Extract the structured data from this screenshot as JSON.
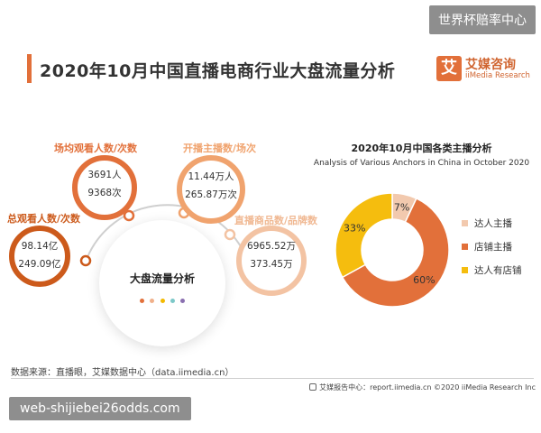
{
  "watermarks": {
    "top_right": "世界杯赔率中心",
    "bottom_left": "web-shijiebei26odds.com"
  },
  "header": {
    "title": "2020年10月中国直播电商行业大盘流量分析"
  },
  "logo": {
    "mark": "艾",
    "cn": "艾媒咨询",
    "en": "iiMedia Research"
  },
  "left_panel": {
    "center_label": "大盘流量分析",
    "center_dot_colors": [
      "#e2703a",
      "#f0b08a",
      "#f3b900",
      "#7cc8c8",
      "#8a6fb0"
    ],
    "metrics": [
      {
        "label": "总观看人数/次数",
        "values": [
          "98.14亿",
          "249.09亿"
        ],
        "color": "#cc5a1b"
      },
      {
        "label": "场均观看人数/次数",
        "values": [
          "3691人",
          "9368次"
        ],
        "color": "#e2703a"
      },
      {
        "label": "开播主播数/场次",
        "values": [
          "11.44万人",
          "265.87万次"
        ],
        "color": "#f0a36e"
      },
      {
        "label": "直播商品数/品牌数",
        "values": [
          "6965.52万",
          "373.45万"
        ],
        "color": "#f3c3a3"
      }
    ]
  },
  "chart_data": {
    "type": "pie",
    "title": "2020年10月中国各类主播分析",
    "subtitle": "Analysis of Various Anchors in China in October 2020",
    "unit": "%",
    "categories": [
      "达人主播",
      "店铺主播",
      "达人有店铺"
    ],
    "values": [
      7,
      60,
      33
    ],
    "colors": [
      "#f2c9ae",
      "#e2703a",
      "#f5bd0e"
    ]
  },
  "source_text": "数据来源：直播眼，艾媒数据中心（data.iimedia.cn）",
  "footer_text": "艾媒报告中心：report.iimedia.cn   ©2020  iiMedia Research  Inc"
}
